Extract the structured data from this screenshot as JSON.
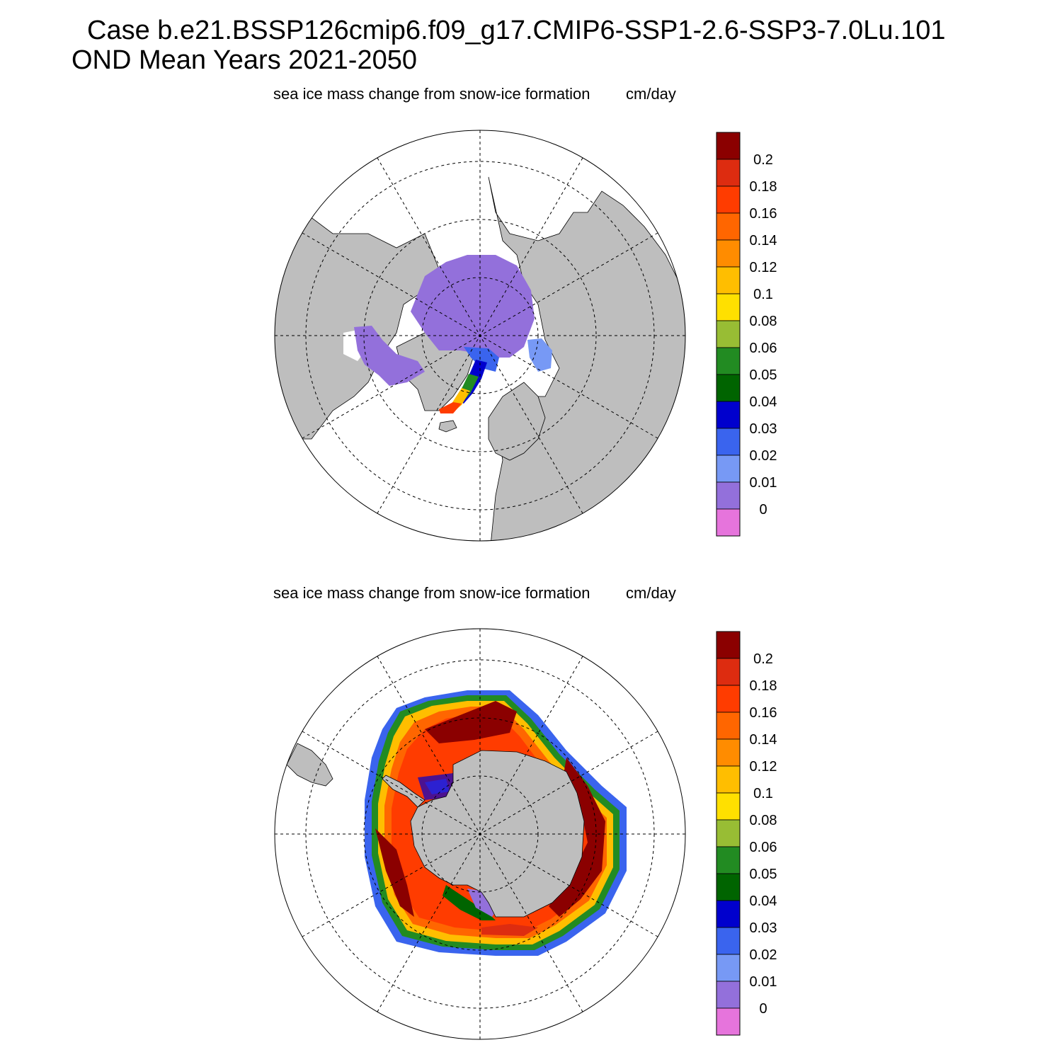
{
  "header": {
    "case_line": "Case b.e21.BSSP126cmip6.f09_g17.CMIP6-SSP1-2.6-SSP3-7.0Lu.101",
    "period_line": "OND Mean   Years 2021-2050"
  },
  "panels": [
    {
      "id": "north",
      "hemisphere": "Northern Hemisphere",
      "variable": "sea ice mass change from snow-ice formation",
      "units": "cm/day"
    },
    {
      "id": "south",
      "hemisphere": "Southern Hemisphere",
      "variable": "sea ice mass change from snow-ice formation",
      "units": "cm/day"
    }
  ],
  "colorbar": {
    "labels": [
      "0.2",
      "0.18",
      "0.16",
      "0.14",
      "0.12",
      "0.1",
      "0.08",
      "0.06",
      "0.05",
      "0.04",
      "0.03",
      "0.02",
      "0.01",
      "0"
    ],
    "colors": [
      "#8b0000",
      "#dd2c10",
      "#ff3c00",
      "#ff6600",
      "#ff8c00",
      "#ffbe00",
      "#ffe000",
      "#98bd34",
      "#228b22",
      "#006400",
      "#0000cd",
      "#3a64ee",
      "#7799f5",
      "#9370db",
      "#e674dc"
    ]
  },
  "colors": {
    "land": "#bebebe",
    "ocean": "#ffffff",
    "grid": "#000000"
  }
}
